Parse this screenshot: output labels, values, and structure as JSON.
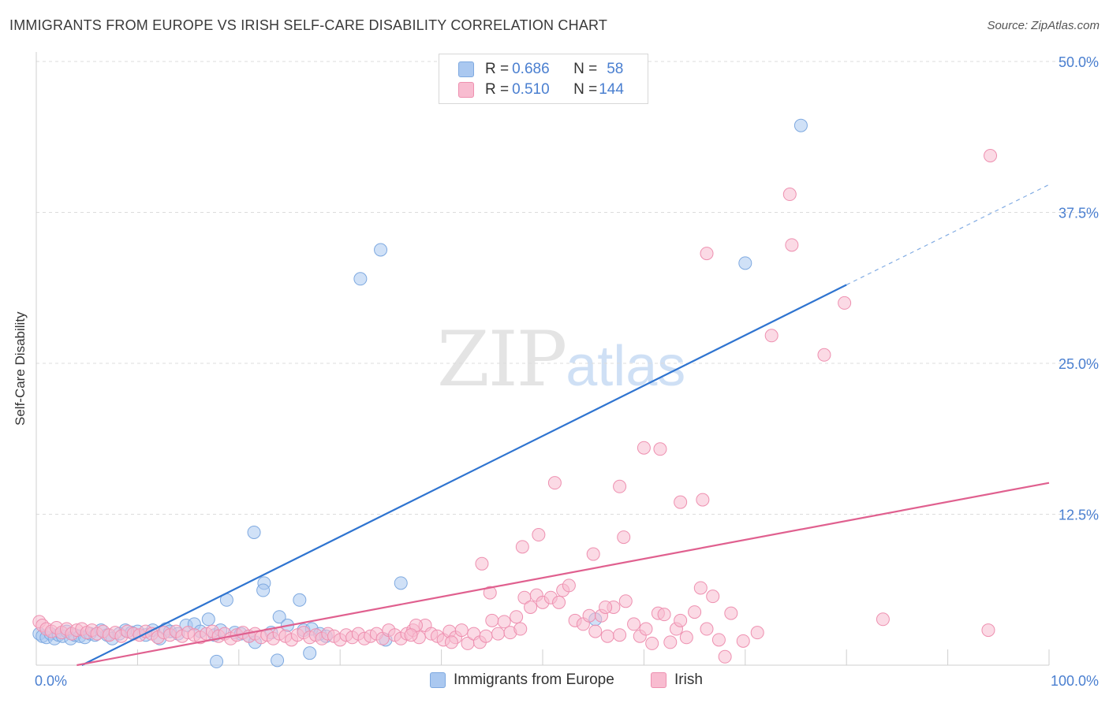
{
  "title": "IMMIGRANTS FROM EUROPE VS IRISH SELF-CARE DISABILITY CORRELATION CHART",
  "source": "Source: ZipAtlas.com",
  "watermark": {
    "zip": "ZIP",
    "atlas": "atlas"
  },
  "legend": {
    "rows": [
      {
        "r_label": "R = ",
        "r_value": "0.686",
        "n_label": "N = ",
        "n_value": "58",
        "color": "#aac8f0",
        "border": "#7ea9e0"
      },
      {
        "r_label": "R = ",
        "r_value": "0.510",
        "n_label": "N = ",
        "n_value": "144",
        "color": "#f8bcd0",
        "border": "#ee90b0"
      }
    ]
  },
  "bottom_legend": [
    {
      "label": "Immigrants from Europe",
      "color": "#aac8f0",
      "border": "#7ea9e0"
    },
    {
      "label": "Irish",
      "color": "#f8bcd0",
      "border": "#ee90b0"
    }
  ],
  "chart_data": {
    "type": "scatter",
    "title": "IMMIGRANTS FROM EUROPE VS IRISH SELF-CARE DISABILITY CORRELATION CHART",
    "xlabel": "",
    "ylabel": "Self-Care Disability",
    "xlim": [
      0,
      100
    ],
    "ylim": [
      0,
      50
    ],
    "x_tick_labels": [
      "0.0%",
      "100.0%"
    ],
    "y_tick_labels": [
      "12.5%",
      "25.0%",
      "37.5%",
      "50.0%"
    ],
    "y_ticks": [
      12.5,
      25.0,
      37.5,
      50.0
    ],
    "grid": true,
    "series": [
      {
        "name": "Immigrants from Europe",
        "color": "#aac8f0",
        "stroke": "#7ea9e0",
        "line_color": "#2f74d0",
        "trend": {
          "x0": 4.5,
          "y0": 0.0,
          "x1": 80.0,
          "y1": 31.5,
          "dash_to_x": 100.0,
          "dash_to_y": 39.8
        },
        "points": [
          [
            0.3,
            2.6
          ],
          [
            0.6,
            2.4
          ],
          [
            1.0,
            2.3
          ],
          [
            1.4,
            2.6
          ],
          [
            1.8,
            2.2
          ],
          [
            2.2,
            2.5
          ],
          [
            2.6,
            2.4
          ],
          [
            3.0,
            2.8
          ],
          [
            3.4,
            2.2
          ],
          [
            3.8,
            2.5
          ],
          [
            4.3,
            2.4
          ],
          [
            4.8,
            2.3
          ],
          [
            5.3,
            2.6
          ],
          [
            5.8,
            2.5
          ],
          [
            6.4,
            2.9
          ],
          [
            7.0,
            2.5
          ],
          [
            7.5,
            2.2
          ],
          [
            8.2,
            2.6
          ],
          [
            8.8,
            2.9
          ],
          [
            9.4,
            2.7
          ],
          [
            10.0,
            2.8
          ],
          [
            10.8,
            2.5
          ],
          [
            11.5,
            2.9
          ],
          [
            12.2,
            2.2
          ],
          [
            12.8,
            3.0
          ],
          [
            13.2,
            2.8
          ],
          [
            14.0,
            2.6
          ],
          [
            14.8,
            3.3
          ],
          [
            15.6,
            3.4
          ],
          [
            16.2,
            2.8
          ],
          [
            17.0,
            3.8
          ],
          [
            17.6,
            2.5
          ],
          [
            18.2,
            2.9
          ],
          [
            18.8,
            5.4
          ],
          [
            19.6,
            2.7
          ],
          [
            20.2,
            2.6
          ],
          [
            21.0,
            2.4
          ],
          [
            21.6,
            1.9
          ],
          [
            22.5,
            6.8
          ],
          [
            23.2,
            2.7
          ],
          [
            24.0,
            4.0
          ],
          [
            24.8,
            3.3
          ],
          [
            26.0,
            5.4
          ],
          [
            26.4,
            2.9
          ],
          [
            27.2,
            3.0
          ],
          [
            28.0,
            2.6
          ],
          [
            32.0,
            32.0
          ],
          [
            34.0,
            34.4
          ],
          [
            34.5,
            2.1
          ],
          [
            36.0,
            6.8
          ],
          [
            21.5,
            11.0
          ],
          [
            22.4,
            6.2
          ],
          [
            23.8,
            0.4
          ],
          [
            17.8,
            0.3
          ],
          [
            28.6,
            2.4
          ],
          [
            27.0,
            1.0
          ],
          [
            70.0,
            33.3
          ],
          [
            75.5,
            44.7
          ]
        ],
        "extra_points": [
          [
            55.2,
            3.8
          ]
        ]
      },
      {
        "name": "Irish",
        "color": "#f8bcd0",
        "stroke": "#ee90b0",
        "line_color": "#e0608f",
        "trend": {
          "x0": 4.0,
          "y0": 0.0,
          "x1": 100.0,
          "y1": 15.1
        },
        "points": [
          [
            0.3,
            3.6
          ],
          [
            0.6,
            3.3
          ],
          [
            1.0,
            3.0
          ],
          [
            1.5,
            2.8
          ],
          [
            2.0,
            3.1
          ],
          [
            2.5,
            2.7
          ],
          [
            3.0,
            3.0
          ],
          [
            3.5,
            2.6
          ],
          [
            4.0,
            2.9
          ],
          [
            4.5,
            3.0
          ],
          [
            5.0,
            2.7
          ],
          [
            5.5,
            2.9
          ],
          [
            6.0,
            2.6
          ],
          [
            6.6,
            2.8
          ],
          [
            7.2,
            2.5
          ],
          [
            7.8,
            2.7
          ],
          [
            8.4,
            2.4
          ],
          [
            9.0,
            2.8
          ],
          [
            9.6,
            2.6
          ],
          [
            10.2,
            2.5
          ],
          [
            10.8,
            2.8
          ],
          [
            11.4,
            2.6
          ],
          [
            12.0,
            2.3
          ],
          [
            12.6,
            2.7
          ],
          [
            13.2,
            2.5
          ],
          [
            13.8,
            2.8
          ],
          [
            14.4,
            2.4
          ],
          [
            15.0,
            2.7
          ],
          [
            15.6,
            2.5
          ],
          [
            16.2,
            2.3
          ],
          [
            16.8,
            2.6
          ],
          [
            17.4,
            2.8
          ],
          [
            18.0,
            2.4
          ],
          [
            18.6,
            2.6
          ],
          [
            19.2,
            2.2
          ],
          [
            19.8,
            2.5
          ],
          [
            20.4,
            2.7
          ],
          [
            21.0,
            2.4
          ],
          [
            21.6,
            2.6
          ],
          [
            22.2,
            2.3
          ],
          [
            22.8,
            2.5
          ],
          [
            23.4,
            2.2
          ],
          [
            24.0,
            2.6
          ],
          [
            24.6,
            2.4
          ],
          [
            25.2,
            2.1
          ],
          [
            25.8,
            2.5
          ],
          [
            26.4,
            2.7
          ],
          [
            27.0,
            2.3
          ],
          [
            27.6,
            2.5
          ],
          [
            28.2,
            2.2
          ],
          [
            28.8,
            2.6
          ],
          [
            29.4,
            2.4
          ],
          [
            30.0,
            2.1
          ],
          [
            30.6,
            2.5
          ],
          [
            31.2,
            2.3
          ],
          [
            31.8,
            2.6
          ],
          [
            32.4,
            2.2
          ],
          [
            33.0,
            2.4
          ],
          [
            33.6,
            2.6
          ],
          [
            34.2,
            2.2
          ],
          [
            34.8,
            2.9
          ],
          [
            35.4,
            2.5
          ],
          [
            36.0,
            2.2
          ],
          [
            36.6,
            2.6
          ],
          [
            37.2,
            2.9
          ],
          [
            37.8,
            2.3
          ],
          [
            38.4,
            3.3
          ],
          [
            39.0,
            2.6
          ],
          [
            39.6,
            2.4
          ],
          [
            40.2,
            2.1
          ],
          [
            40.8,
            2.8
          ],
          [
            41.4,
            2.3
          ],
          [
            42.0,
            2.9
          ],
          [
            42.6,
            1.8
          ],
          [
            43.2,
            2.6
          ],
          [
            43.8,
            1.9
          ],
          [
            44.4,
            2.4
          ],
          [
            45.0,
            3.7
          ],
          [
            45.6,
            2.6
          ],
          [
            46.2,
            3.6
          ],
          [
            46.8,
            2.7
          ],
          [
            47.4,
            4.0
          ],
          [
            47.8,
            3.0
          ],
          [
            48.2,
            5.6
          ],
          [
            48.8,
            4.8
          ],
          [
            49.4,
            5.8
          ],
          [
            50.0,
            5.2
          ],
          [
            50.8,
            5.6
          ],
          [
            51.6,
            5.2
          ],
          [
            52.0,
            6.2
          ],
          [
            52.6,
            6.6
          ],
          [
            53.2,
            3.7
          ],
          [
            54.0,
            3.4
          ],
          [
            54.6,
            4.1
          ],
          [
            55.2,
            2.8
          ],
          [
            55.8,
            4.1
          ],
          [
            56.4,
            2.4
          ],
          [
            57.0,
            4.8
          ],
          [
            57.6,
            2.5
          ],
          [
            58.2,
            5.3
          ],
          [
            59.0,
            3.4
          ],
          [
            59.6,
            2.4
          ],
          [
            60.2,
            3.0
          ],
          [
            60.8,
            1.8
          ],
          [
            61.4,
            4.3
          ],
          [
            62.0,
            4.2
          ],
          [
            62.6,
            1.9
          ],
          [
            63.2,
            3.0
          ],
          [
            63.6,
            3.7
          ],
          [
            64.2,
            2.3
          ],
          [
            65.0,
            4.4
          ],
          [
            65.6,
            6.4
          ],
          [
            66.2,
            3.0
          ],
          [
            66.8,
            5.7
          ],
          [
            67.4,
            2.1
          ],
          [
            68.0,
            0.7
          ],
          [
            68.6,
            4.3
          ],
          [
            69.8,
            2.0
          ],
          [
            71.2,
            2.7
          ],
          [
            37.5,
            3.3
          ],
          [
            44.0,
            8.4
          ],
          [
            44.8,
            6.0
          ],
          [
            48.0,
            9.8
          ],
          [
            49.6,
            10.8
          ],
          [
            51.2,
            15.1
          ],
          [
            55.0,
            9.2
          ],
          [
            56.2,
            4.8
          ],
          [
            57.6,
            14.8
          ],
          [
            58.0,
            10.6
          ],
          [
            60.0,
            18.0
          ],
          [
            61.6,
            17.9
          ],
          [
            63.6,
            13.5
          ],
          [
            65.8,
            13.7
          ],
          [
            66.2,
            34.1
          ],
          [
            72.6,
            27.3
          ],
          [
            74.4,
            39.0
          ],
          [
            74.6,
            34.8
          ],
          [
            77.8,
            25.7
          ],
          [
            79.8,
            30.0
          ],
          [
            83.6,
            3.8
          ],
          [
            94.2,
            42.2
          ],
          [
            94.0,
            2.9
          ],
          [
            37.0,
            2.5
          ],
          [
            41.0,
            1.9
          ]
        ]
      }
    ]
  }
}
